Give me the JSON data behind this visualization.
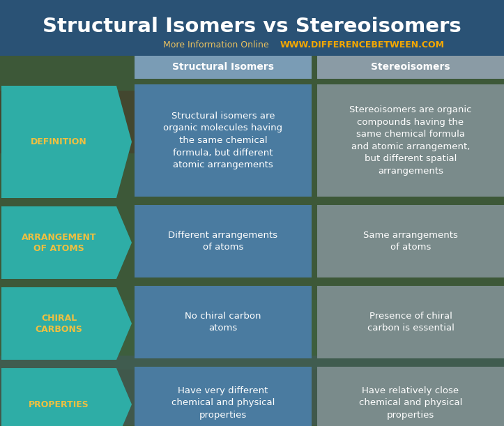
{
  "title": "Structural Isomers vs Stereoisomers",
  "subtitle_normal": "More Information Online",
  "subtitle_url": "WWW.DIFFERENCEBETWEEN.COM",
  "col_headers": [
    "Structural Isomers",
    "Stereoisomers"
  ],
  "row_labels": [
    "DEFINITION",
    "ARRANGEMENT\nOF ATOMS",
    "CHIRAL\nCARBONS",
    "PROPERTIES"
  ],
  "col1_data": [
    "Structural isomers are\norganic molecules having\nthe same chemical\nformula, but different\natomic arrangements",
    "Different arrangements\nof atoms",
    "No chiral carbon\natoms",
    "Have very different\nchemical and physical\nproperties"
  ],
  "col2_data": [
    "Stereoisomers are organic\ncompounds having the\nsame chemical formula\nand atomic arrangement,\nbut different spatial\narrangements",
    "Same arrangements\nof atoms",
    "Presence of chiral\ncarbon is essential",
    "Have relatively close\nchemical and physical\nproperties"
  ],
  "title_color": "#FFFFFF",
  "subtitle_normal_color": "#E8C060",
  "subtitle_url_color": "#F5A800",
  "header_bg_col1": "#7A9CB5",
  "header_bg_col2": "#8A9BA5",
  "header_text_color": "#FFFFFF",
  "row_label_bg_color": "#2EADA6",
  "row_label_text_color": "#F0C040",
  "col1_bg_color": "#4A7BA0",
  "col1_text_color": "#FFFFFF",
  "col2_bg_color": "#7A8B8B",
  "col2_text_color": "#FFFFFF",
  "title_bg_color": "#2A5880",
  "gap_color_top": "#3A6A50",
  "gap_color_mid": "#4A5A40",
  "figsize": [
    7.23,
    6.11
  ],
  "dpi": 100
}
